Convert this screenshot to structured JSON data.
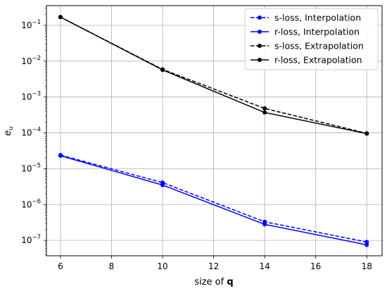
{
  "chart_data": {
    "type": "line",
    "title": "",
    "xlabel_prefix": "size of ",
    "xlabel_bold": "q",
    "ylabel_main": "e",
    "ylabel_sub": "u",
    "x_ticks": [
      6,
      8,
      10,
      12,
      14,
      16,
      18
    ],
    "y_ticks": [
      {
        "value": 1e-07,
        "exp": "−7"
      },
      {
        "value": 1e-06,
        "exp": "−6"
      },
      {
        "value": 1e-05,
        "exp": "−5"
      },
      {
        "value": 0.0001,
        "exp": "−4"
      },
      {
        "value": 0.001,
        "exp": "−3"
      },
      {
        "value": 0.01,
        "exp": "−2"
      },
      {
        "value": 0.1,
        "exp": "−1"
      }
    ],
    "tick_base": "10",
    "y_scale": "log",
    "xlim": [
      5.45,
      18.6
    ],
    "ylim_log10": [
      -7.43,
      -0.45
    ],
    "grid": true,
    "legend_placement": "top-right",
    "x": [
      6,
      10,
      14,
      18
    ],
    "series": [
      {
        "name": "s-loss, Interpolation",
        "color": "#0000ff",
        "dashed": true,
        "values": [
          2.4e-05,
          4.1e-06,
          3.3e-07,
          9e-08
        ]
      },
      {
        "name": "r-loss, Interpolation",
        "color": "#0000ff",
        "dashed": false,
        "values": [
          2.3e-05,
          3.5e-06,
          2.8e-07,
          7.5e-08
        ]
      },
      {
        "name": "s-loss, Extrapolation",
        "color": "#000000",
        "dashed": true,
        "values": [
          0.17,
          0.0059,
          0.00048,
          9.7e-05
        ]
      },
      {
        "name": "r-loss, Extrapolation",
        "color": "#000000",
        "dashed": false,
        "values": [
          0.17,
          0.0057,
          0.00037,
          9.5e-05
        ]
      }
    ]
  }
}
